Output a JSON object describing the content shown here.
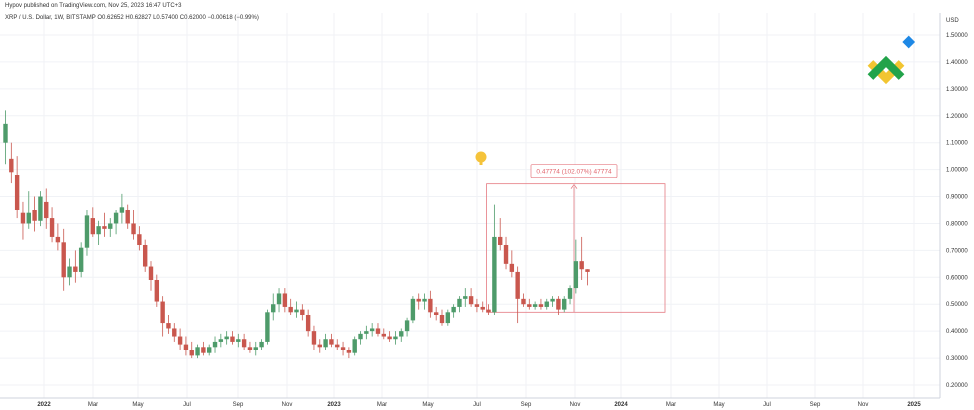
{
  "header": {
    "published": "Hypov published on TradingView.com, Nov 25, 2023 16:47 UTC+3",
    "symbol": "XRP / U.S. Dollar, 1W, BITSTAMP",
    "ohlc": "O0.62652 H0.62827 L0.57400 C0.62000 −0.00618 (−0.99%)"
  },
  "price_axis": {
    "currency": "USD",
    "ticks": [
      "1.50000",
      "1.40000",
      "1.30000",
      "1.20000",
      "1.10000",
      "1.00000",
      "0.90000",
      "0.80000",
      "0.70000",
      "0.60000",
      "0.50000",
      "0.40000",
      "0.30000",
      "0.20000"
    ]
  },
  "time_axis": {
    "ticks": [
      "2022",
      "Mar",
      "May",
      "Jul",
      "Sep",
      "Nov",
      "2023",
      "Mar",
      "May",
      "Jul",
      "Sep",
      "Nov",
      "2024",
      "Mar",
      "May",
      "Jul",
      "Sep",
      "Nov",
      "2025"
    ]
  },
  "colors": {
    "up": "#4e9b6a",
    "down": "#c9574e",
    "measure": "#e57a82",
    "logo_green": "#22a34a",
    "logo_yellow": "#f2c531",
    "marker": "#f5c33a"
  },
  "measure": {
    "label": "0.47774 (102.07%) 47774",
    "low": 0.47,
    "high": 0.9478
  },
  "marker_icon": "lightbulb-icon",
  "logo_icon": "brand-logo-icon",
  "chart_data": {
    "type": "candlestick",
    "title": "XRP / U.S. Dollar, 1W, BITSTAMP",
    "interval": "1W",
    "ylim": [
      0.17,
      1.56
    ],
    "grid": true,
    "candles": [
      {
        "o": 1.1,
        "h": 1.22,
        "l": 1.02,
        "c": 1.17
      },
      {
        "o": 1.04,
        "h": 1.1,
        "l": 0.95,
        "c": 0.99
      },
      {
        "o": 0.98,
        "h": 1.05,
        "l": 0.82,
        "c": 0.85
      },
      {
        "o": 0.84,
        "h": 0.88,
        "l": 0.74,
        "c": 0.8
      },
      {
        "o": 0.8,
        "h": 0.92,
        "l": 0.78,
        "c": 0.84
      },
      {
        "o": 0.85,
        "h": 0.9,
        "l": 0.77,
        "c": 0.81
      },
      {
        "o": 0.81,
        "h": 0.92,
        "l": 0.79,
        "c": 0.9
      },
      {
        "o": 0.88,
        "h": 0.93,
        "l": 0.78,
        "c": 0.82
      },
      {
        "o": 0.82,
        "h": 0.86,
        "l": 0.73,
        "c": 0.75
      },
      {
        "o": 0.75,
        "h": 0.8,
        "l": 0.7,
        "c": 0.73
      },
      {
        "o": 0.73,
        "h": 0.78,
        "l": 0.55,
        "c": 0.6
      },
      {
        "o": 0.6,
        "h": 0.67,
        "l": 0.57,
        "c": 0.64
      },
      {
        "o": 0.64,
        "h": 0.7,
        "l": 0.58,
        "c": 0.62
      },
      {
        "o": 0.62,
        "h": 0.73,
        "l": 0.6,
        "c": 0.71
      },
      {
        "o": 0.71,
        "h": 0.85,
        "l": 0.68,
        "c": 0.83
      },
      {
        "o": 0.82,
        "h": 0.86,
        "l": 0.75,
        "c": 0.76
      },
      {
        "o": 0.76,
        "h": 0.81,
        "l": 0.72,
        "c": 0.79
      },
      {
        "o": 0.79,
        "h": 0.84,
        "l": 0.75,
        "c": 0.78
      },
      {
        "o": 0.78,
        "h": 0.82,
        "l": 0.75,
        "c": 0.8
      },
      {
        "o": 0.8,
        "h": 0.85,
        "l": 0.76,
        "c": 0.84
      },
      {
        "o": 0.84,
        "h": 0.91,
        "l": 0.8,
        "c": 0.86
      },
      {
        "o": 0.85,
        "h": 0.87,
        "l": 0.78,
        "c": 0.8
      },
      {
        "o": 0.8,
        "h": 0.85,
        "l": 0.74,
        "c": 0.76
      },
      {
        "o": 0.76,
        "h": 0.79,
        "l": 0.7,
        "c": 0.72
      },
      {
        "o": 0.72,
        "h": 0.74,
        "l": 0.62,
        "c": 0.64
      },
      {
        "o": 0.64,
        "h": 0.66,
        "l": 0.55,
        "c": 0.59
      },
      {
        "o": 0.59,
        "h": 0.61,
        "l": 0.49,
        "c": 0.51
      },
      {
        "o": 0.51,
        "h": 0.53,
        "l": 0.38,
        "c": 0.43
      },
      {
        "o": 0.43,
        "h": 0.46,
        "l": 0.39,
        "c": 0.41
      },
      {
        "o": 0.41,
        "h": 0.43,
        "l": 0.36,
        "c": 0.38
      },
      {
        "o": 0.38,
        "h": 0.41,
        "l": 0.33,
        "c": 0.35
      },
      {
        "o": 0.35,
        "h": 0.38,
        "l": 0.31,
        "c": 0.33
      },
      {
        "o": 0.33,
        "h": 0.36,
        "l": 0.3,
        "c": 0.31
      },
      {
        "o": 0.31,
        "h": 0.35,
        "l": 0.3,
        "c": 0.34
      },
      {
        "o": 0.34,
        "h": 0.36,
        "l": 0.31,
        "c": 0.32
      },
      {
        "o": 0.32,
        "h": 0.35,
        "l": 0.31,
        "c": 0.34
      },
      {
        "o": 0.34,
        "h": 0.38,
        "l": 0.32,
        "c": 0.36
      },
      {
        "o": 0.36,
        "h": 0.39,
        "l": 0.34,
        "c": 0.37
      },
      {
        "o": 0.37,
        "h": 0.4,
        "l": 0.35,
        "c": 0.38
      },
      {
        "o": 0.38,
        "h": 0.4,
        "l": 0.35,
        "c": 0.36
      },
      {
        "o": 0.36,
        "h": 0.39,
        "l": 0.34,
        "c": 0.37
      },
      {
        "o": 0.37,
        "h": 0.39,
        "l": 0.33,
        "c": 0.34
      },
      {
        "o": 0.34,
        "h": 0.36,
        "l": 0.32,
        "c": 0.33
      },
      {
        "o": 0.33,
        "h": 0.36,
        "l": 0.31,
        "c": 0.34
      },
      {
        "o": 0.34,
        "h": 0.37,
        "l": 0.33,
        "c": 0.36
      },
      {
        "o": 0.36,
        "h": 0.48,
        "l": 0.35,
        "c": 0.47
      },
      {
        "o": 0.47,
        "h": 0.54,
        "l": 0.44,
        "c": 0.5
      },
      {
        "o": 0.5,
        "h": 0.56,
        "l": 0.47,
        "c": 0.54
      },
      {
        "o": 0.54,
        "h": 0.56,
        "l": 0.47,
        "c": 0.49
      },
      {
        "o": 0.49,
        "h": 0.52,
        "l": 0.46,
        "c": 0.47
      },
      {
        "o": 0.47,
        "h": 0.51,
        "l": 0.45,
        "c": 0.48
      },
      {
        "o": 0.48,
        "h": 0.5,
        "l": 0.44,
        "c": 0.46
      },
      {
        "o": 0.46,
        "h": 0.48,
        "l": 0.38,
        "c": 0.4
      },
      {
        "o": 0.4,
        "h": 0.42,
        "l": 0.33,
        "c": 0.35
      },
      {
        "o": 0.35,
        "h": 0.37,
        "l": 0.32,
        "c": 0.34
      },
      {
        "o": 0.34,
        "h": 0.39,
        "l": 0.33,
        "c": 0.37
      },
      {
        "o": 0.37,
        "h": 0.39,
        "l": 0.34,
        "c": 0.35
      },
      {
        "o": 0.35,
        "h": 0.37,
        "l": 0.33,
        "c": 0.34
      },
      {
        "o": 0.34,
        "h": 0.36,
        "l": 0.31,
        "c": 0.33
      },
      {
        "o": 0.33,
        "h": 0.34,
        "l": 0.3,
        "c": 0.32
      },
      {
        "o": 0.32,
        "h": 0.38,
        "l": 0.31,
        "c": 0.37
      },
      {
        "o": 0.37,
        "h": 0.4,
        "l": 0.35,
        "c": 0.39
      },
      {
        "o": 0.39,
        "h": 0.42,
        "l": 0.37,
        "c": 0.4
      },
      {
        "o": 0.4,
        "h": 0.43,
        "l": 0.38,
        "c": 0.41
      },
      {
        "o": 0.41,
        "h": 0.43,
        "l": 0.38,
        "c": 0.39
      },
      {
        "o": 0.39,
        "h": 0.41,
        "l": 0.37,
        "c": 0.38
      },
      {
        "o": 0.38,
        "h": 0.4,
        "l": 0.36,
        "c": 0.37
      },
      {
        "o": 0.37,
        "h": 0.4,
        "l": 0.35,
        "c": 0.38
      },
      {
        "o": 0.38,
        "h": 0.41,
        "l": 0.36,
        "c": 0.4
      },
      {
        "o": 0.4,
        "h": 0.45,
        "l": 0.38,
        "c": 0.44
      },
      {
        "o": 0.44,
        "h": 0.53,
        "l": 0.43,
        "c": 0.52
      },
      {
        "o": 0.52,
        "h": 0.54,
        "l": 0.48,
        "c": 0.51
      },
      {
        "o": 0.51,
        "h": 0.54,
        "l": 0.48,
        "c": 0.52
      },
      {
        "o": 0.52,
        "h": 0.55,
        "l": 0.45,
        "c": 0.47
      },
      {
        "o": 0.47,
        "h": 0.49,
        "l": 0.44,
        "c": 0.46
      },
      {
        "o": 0.46,
        "h": 0.48,
        "l": 0.42,
        "c": 0.43
      },
      {
        "o": 0.43,
        "h": 0.48,
        "l": 0.42,
        "c": 0.47
      },
      {
        "o": 0.47,
        "h": 0.5,
        "l": 0.45,
        "c": 0.49
      },
      {
        "o": 0.49,
        "h": 0.53,
        "l": 0.47,
        "c": 0.52
      },
      {
        "o": 0.52,
        "h": 0.56,
        "l": 0.49,
        "c": 0.53
      },
      {
        "o": 0.53,
        "h": 0.56,
        "l": 0.49,
        "c": 0.5
      },
      {
        "o": 0.5,
        "h": 0.52,
        "l": 0.47,
        "c": 0.49
      },
      {
        "o": 0.49,
        "h": 0.51,
        "l": 0.47,
        "c": 0.48
      },
      {
        "o": 0.48,
        "h": 0.5,
        "l": 0.46,
        "c": 0.47
      },
      {
        "o": 0.47,
        "h": 0.87,
        "l": 0.46,
        "c": 0.75
      },
      {
        "o": 0.75,
        "h": 0.82,
        "l": 0.7,
        "c": 0.72
      },
      {
        "o": 0.72,
        "h": 0.75,
        "l": 0.63,
        "c": 0.65
      },
      {
        "o": 0.65,
        "h": 0.7,
        "l": 0.6,
        "c": 0.62
      },
      {
        "o": 0.62,
        "h": 0.64,
        "l": 0.43,
        "c": 0.52
      },
      {
        "o": 0.52,
        "h": 0.54,
        "l": 0.49,
        "c": 0.5
      },
      {
        "o": 0.5,
        "h": 0.52,
        "l": 0.48,
        "c": 0.49
      },
      {
        "o": 0.49,
        "h": 0.51,
        "l": 0.48,
        "c": 0.5
      },
      {
        "o": 0.5,
        "h": 0.52,
        "l": 0.48,
        "c": 0.49
      },
      {
        "o": 0.49,
        "h": 0.52,
        "l": 0.48,
        "c": 0.51
      },
      {
        "o": 0.51,
        "h": 0.53,
        "l": 0.49,
        "c": 0.52
      },
      {
        "o": 0.52,
        "h": 0.53,
        "l": 0.46,
        "c": 0.48
      },
      {
        "o": 0.48,
        "h": 0.53,
        "l": 0.47,
        "c": 0.52
      },
      {
        "o": 0.52,
        "h": 0.57,
        "l": 0.5,
        "c": 0.56
      },
      {
        "o": 0.56,
        "h": 0.74,
        "l": 0.54,
        "c": 0.66
      },
      {
        "o": 0.66,
        "h": 0.75,
        "l": 0.59,
        "c": 0.63
      },
      {
        "o": 0.63,
        "h": 0.63,
        "l": 0.57,
        "c": 0.62
      }
    ]
  }
}
